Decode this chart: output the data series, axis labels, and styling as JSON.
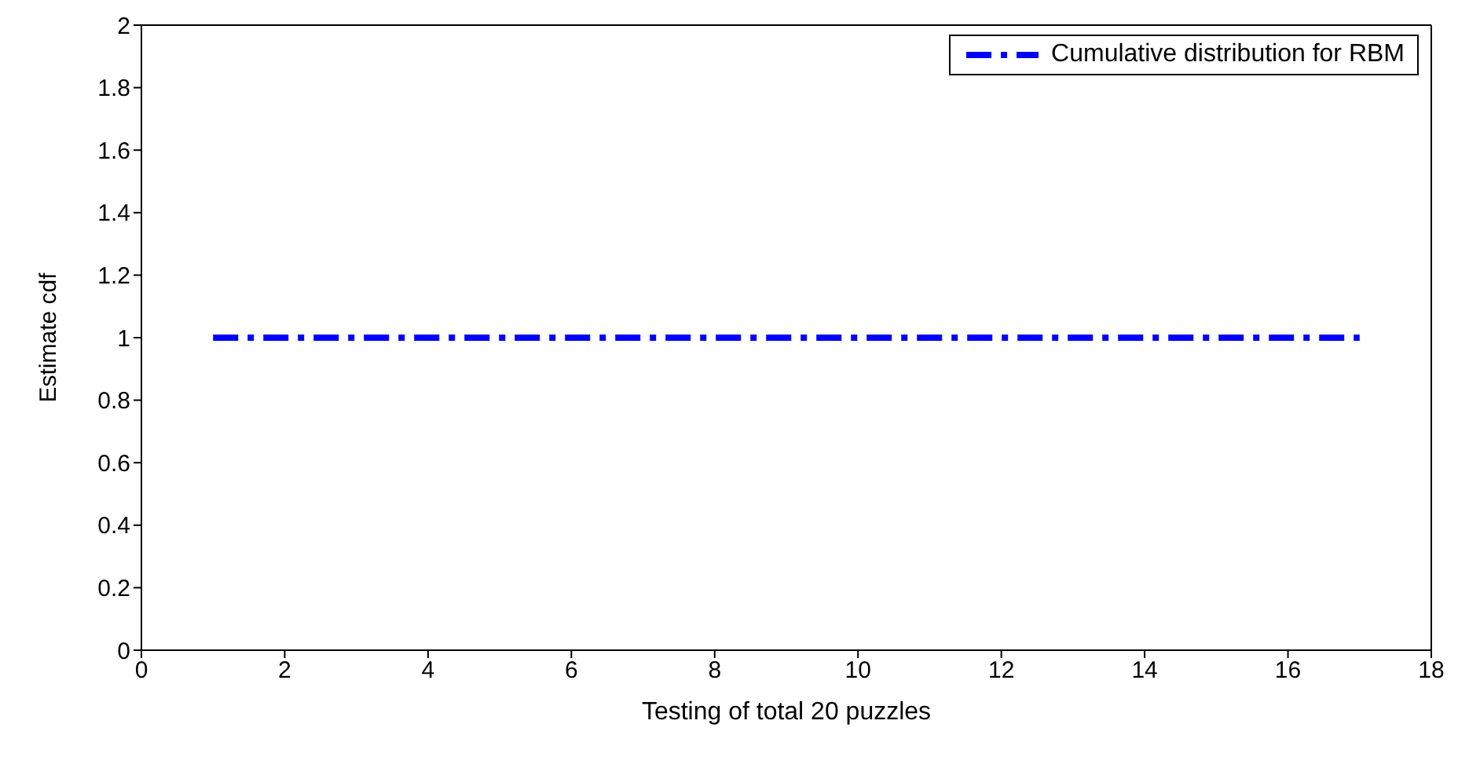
{
  "chart_data": {
    "type": "line",
    "xlabel": "Testing of total 20 puzzles",
    "ylabel": "Estimate cdf",
    "x": [
      1,
      17
    ],
    "series": [
      {
        "name": "Cumulative distribution for RBM",
        "color": "#0000ff",
        "values": [
          1,
          1
        ]
      }
    ],
    "xlim": [
      0,
      18
    ],
    "xticks": [
      0,
      2,
      4,
      6,
      8,
      10,
      12,
      14,
      16,
      18
    ],
    "ylim": [
      0,
      2
    ],
    "yticks": [
      0,
      0.2,
      0.4,
      0.6,
      0.8,
      1,
      1.2,
      1.4,
      1.6,
      1.8,
      2
    ],
    "grid": false,
    "legend": "top right",
    "marker": "none",
    "line_style": "dashed"
  }
}
